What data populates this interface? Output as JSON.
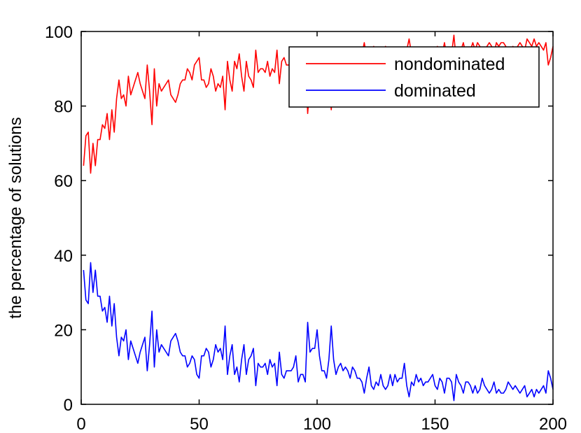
{
  "chart_data": {
    "type": "line",
    "title": "",
    "xlabel": "",
    "ylabel": "the percentage of solutions",
    "xlim": [
      0,
      200
    ],
    "ylim": [
      0,
      100
    ],
    "xticks": [
      0,
      50,
      100,
      150,
      200
    ],
    "yticks": [
      0,
      20,
      40,
      60,
      80,
      100
    ],
    "grid": false,
    "legend_position": "top-right",
    "x": [
      1,
      2,
      3,
      4,
      5,
      6,
      7,
      8,
      9,
      10,
      11,
      12,
      13,
      14,
      15,
      16,
      17,
      18,
      19,
      20,
      21,
      22,
      23,
      24,
      25,
      26,
      27,
      28,
      29,
      30,
      31,
      32,
      33,
      34,
      35,
      36,
      37,
      38,
      39,
      40,
      41,
      42,
      43,
      44,
      45,
      46,
      47,
      48,
      49,
      50,
      51,
      52,
      53,
      54,
      55,
      56,
      57,
      58,
      59,
      60,
      61,
      62,
      63,
      64,
      65,
      66,
      67,
      68,
      69,
      70,
      71,
      72,
      73,
      74,
      75,
      76,
      77,
      78,
      79,
      80,
      81,
      82,
      83,
      84,
      85,
      86,
      87,
      88,
      89,
      90,
      91,
      92,
      93,
      94,
      95,
      96,
      97,
      98,
      99,
      100,
      101,
      102,
      103,
      104,
      105,
      106,
      107,
      108,
      109,
      110,
      111,
      112,
      113,
      114,
      115,
      116,
      117,
      118,
      119,
      120,
      121,
      122,
      123,
      124,
      125,
      126,
      127,
      128,
      129,
      130,
      131,
      132,
      133,
      134,
      135,
      136,
      137,
      138,
      139,
      140,
      141,
      142,
      143,
      144,
      145,
      146,
      147,
      148,
      149,
      150,
      151,
      152,
      153,
      154,
      155,
      156,
      157,
      158,
      159,
      160,
      161,
      162,
      163,
      164,
      165,
      166,
      167,
      168,
      169,
      170,
      171,
      172,
      173,
      174,
      175,
      176,
      177,
      178,
      179,
      180,
      181,
      182,
      183,
      184,
      185,
      186,
      187,
      188,
      189,
      190,
      191,
      192,
      193,
      194,
      195,
      196,
      197,
      198,
      199,
      200
    ],
    "series": [
      {
        "name": "nondominated",
        "color": "#ff0000",
        "values": [
          64,
          72,
          73,
          62,
          70,
          64,
          71,
          71,
          75,
          74,
          78,
          71,
          79,
          73,
          82,
          87,
          82,
          83,
          80,
          88,
          83,
          85,
          87,
          89,
          86,
          84,
          82,
          91,
          84,
          75,
          90,
          80,
          86,
          84,
          85,
          86,
          87,
          83,
          82,
          81,
          83,
          86,
          87,
          87,
          90,
          89,
          87,
          91,
          92,
          93,
          87,
          87,
          85,
          86,
          90,
          88,
          84,
          86,
          85,
          88,
          79,
          92,
          87,
          84,
          92,
          90,
          94,
          88,
          84,
          92,
          88,
          87,
          85,
          95,
          89,
          90,
          90,
          89,
          92,
          88,
          90,
          89,
          95,
          86,
          92,
          93,
          91,
          91,
          91,
          90,
          87,
          94,
          92,
          92,
          94,
          78,
          86,
          85,
          85,
          80,
          87,
          91,
          91,
          93,
          88,
          79,
          88,
          92,
          90,
          89,
          91,
          90,
          91,
          93,
          90,
          91,
          93,
          93,
          94,
          97,
          93,
          90,
          95,
          96,
          94,
          95,
          92,
          95,
          96,
          95,
          92,
          95,
          92,
          94,
          93,
          93,
          89,
          95,
          98,
          94,
          95,
          92,
          94,
          93,
          95,
          94,
          94,
          93,
          92,
          95,
          96,
          93,
          94,
          97,
          93,
          93,
          94,
          99,
          92,
          94,
          95,
          97,
          94,
          94,
          95,
          97,
          95,
          97,
          96,
          93,
          95,
          96,
          97,
          96,
          94,
          97,
          96,
          97,
          97,
          96,
          94,
          95,
          96,
          95,
          96,
          97,
          96,
          95,
          98,
          97,
          96,
          98,
          96,
          97,
          96,
          95,
          97,
          91,
          93,
          96
        ]
      },
      {
        "name": "dominated",
        "color": "#0000ff",
        "values": [
          36,
          28,
          27,
          38,
          30,
          36,
          29,
          29,
          25,
          26,
          22,
          29,
          21,
          27,
          18,
          13,
          18,
          17,
          20,
          12,
          17,
          15,
          13,
          11,
          14,
          16,
          18,
          9,
          16,
          25,
          10,
          20,
          14,
          16,
          15,
          14,
          13,
          17,
          18,
          19,
          17,
          14,
          13,
          13,
          10,
          11,
          13,
          12,
          8,
          7,
          13,
          13,
          15,
          14,
          10,
          12,
          16,
          14,
          15,
          12,
          21,
          8,
          13,
          16,
          8,
          10,
          6,
          12,
          16,
          8,
          12,
          13,
          15,
          5,
          11,
          10,
          10,
          11,
          8,
          12,
          10,
          11,
          5,
          14,
          8,
          7,
          9,
          9,
          9,
          10,
          13,
          6,
          8,
          8,
          6,
          22,
          14,
          15,
          15,
          20,
          13,
          9,
          9,
          7,
          12,
          21,
          12,
          8,
          10,
          11,
          9,
          10,
          9,
          7,
          10,
          9,
          7,
          7,
          6,
          3,
          7,
          10,
          5,
          4,
          6,
          5,
          8,
          5,
          4,
          5,
          8,
          5,
          8,
          6,
          7,
          7,
          11,
          5,
          2,
          6,
          5,
          8,
          6,
          7,
          5,
          6,
          6,
          7,
          8,
          5,
          4,
          7,
          6,
          3,
          7,
          7,
          6,
          1,
          8,
          6,
          5,
          3,
          6,
          6,
          5,
          3,
          5,
          3,
          4,
          7,
          5,
          4,
          3,
          4,
          6,
          3,
          4,
          3,
          3,
          4,
          6,
          5,
          4,
          5,
          4,
          3,
          4,
          5,
          2,
          3,
          4,
          2,
          4,
          3,
          4,
          5,
          3,
          9,
          7,
          4
        ]
      }
    ],
    "legend": {
      "entries": [
        "nondominated",
        "dominated"
      ]
    }
  }
}
